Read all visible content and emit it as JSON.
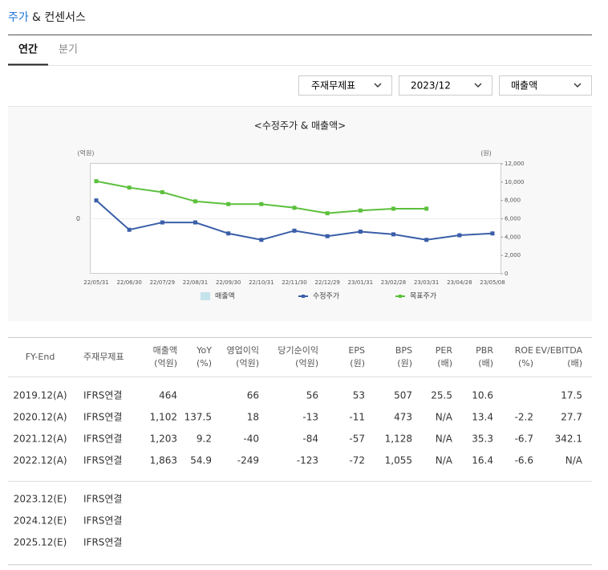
{
  "header": {
    "title_highlight": "주가",
    "title_rest": "& 컨센서스"
  },
  "tabs": [
    "연간",
    "분기"
  ],
  "dropdowns": [
    "주재무제표",
    "2023/12",
    "매출액"
  ],
  "chart_data": {
    "type": "line",
    "title": "<수정주가 & 매출액>",
    "y_label": "(억원)",
    "y2_label": "(원)",
    "categories": [
      "22/05/31",
      "22/06/30",
      "22/07/29",
      "22/08/31",
      "22/09/30",
      "22/10/31",
      "22/11/30",
      "22/12/29",
      "23/01/31",
      "23/02/28",
      "23/03/31",
      "23/04/28",
      "23/05/08"
    ],
    "ylim": [
      -1,
      1
    ],
    "yticks": [
      0
    ],
    "y2lim": [
      0,
      12000
    ],
    "y2ticks": [
      0,
      {
        "value": 2000,
        "label": "2,000"
      },
      {
        "value": 4000,
        "label": "4,000"
      },
      {
        "value": 6000,
        "label": "6,000"
      },
      {
        "value": 8000,
        "label": "8,000"
      },
      {
        "value": 10000,
        "label": "10,000"
      },
      {
        "value": 12000,
        "label": "12,000"
      }
    ],
    "series": [
      {
        "name": "매출액",
        "color": "#c5e3ec",
        "kind": "bar",
        "values": [
          null,
          null,
          null,
          null,
          null,
          null,
          null,
          null,
          null,
          null,
          null,
          null,
          null
        ]
      },
      {
        "name": "수정주가",
        "color": "#3a5ea8",
        "axis": "y2",
        "values": [
          8000,
          4800,
          5600,
          5600,
          4400,
          3700,
          4700,
          4100,
          4600,
          4300,
          3700,
          4200,
          4400
        ]
      },
      {
        "name": "목표주가",
        "color": "#5cc03c",
        "axis": "y2",
        "values": [
          10100,
          9400,
          8900,
          7900,
          7600,
          7600,
          7200,
          6600,
          6900,
          7100,
          7100,
          null,
          null
        ]
      }
    ]
  },
  "table": {
    "header": [
      [
        "FY-End"
      ],
      [
        "주재무제표"
      ],
      [
        "매출액",
        "(억원)"
      ],
      [
        "YoY",
        "(%)"
      ],
      [
        "영업이익",
        "(억원)"
      ],
      [
        "당기순이익",
        "(억원)"
      ],
      [
        "EPS",
        "(원)"
      ],
      [
        "BPS",
        "(원)"
      ],
      [
        "PER",
        "(배)"
      ],
      [
        "PBR",
        "(배)"
      ],
      [
        "ROE",
        "(%)"
      ],
      [
        "EV/EBITDA",
        "(배)"
      ]
    ],
    "rows": [
      [
        "2019.12(A)",
        "IFRS연결",
        "464",
        null,
        "66",
        "56",
        "53",
        "507",
        "25.5",
        "10.6",
        null,
        "17.5"
      ],
      [
        "2020.12(A)",
        "IFRS연결",
        "1,102",
        "137.5",
        "18",
        "-13",
        "-11",
        "473",
        "N/A",
        "13.4",
        "-2.2",
        "27.7"
      ],
      [
        "2021.12(A)",
        "IFRS연결",
        "1,203",
        "9.2",
        "-40",
        "-84",
        "-57",
        "1,128",
        "N/A",
        "35.3",
        "-6.7",
        "342.1"
      ],
      [
        "2022.12(A)",
        "IFRS연결",
        "1,863",
        "54.9",
        "-249",
        "-123",
        "-72",
        "1,055",
        "N/A",
        "16.4",
        "-6.6",
        "N/A"
      ]
    ],
    "estimate_rows": [
      [
        "2023.12(E)",
        "IFRS연결"
      ],
      [
        "2024.12(E)",
        "IFRS연결"
      ],
      [
        "2025.12(E)",
        "IFRS연결"
      ]
    ]
  }
}
